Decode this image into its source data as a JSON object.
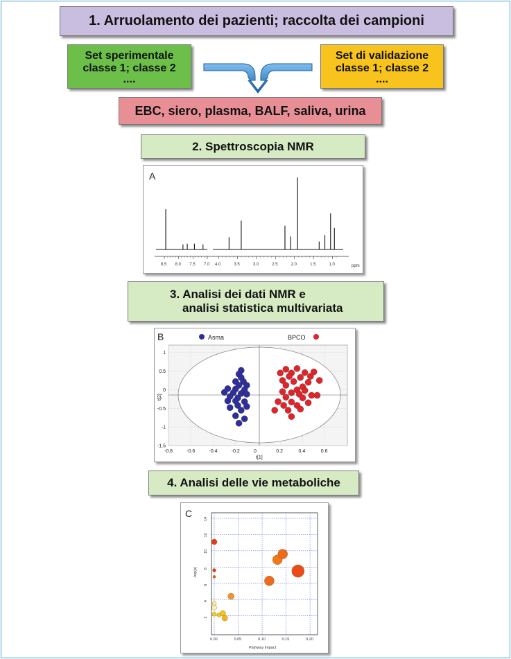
{
  "steps": {
    "step1": "1. Arruolamento dei pazienti; raccolta dei campioni",
    "set_exp": [
      "Set sperimentale",
      "classe 1; classe 2",
      "...."
    ],
    "set_val": [
      "Set di validazione",
      "classe 1; classe 2",
      "...."
    ],
    "samples": "EBC, siero, plasma, BALF, saliva, urina",
    "step2": "2. Spettroscopia NMR",
    "step3": [
      "3. Analisi dei dati NMR e",
      "analisi statistica multivariata"
    ],
    "step4": "4. Analisi delle vie metaboliche"
  },
  "colors": {
    "step1": "#c9bde0",
    "set_exp": "#6cc04a",
    "set_val": "#f7c31c",
    "samples": "#e88f95",
    "step_green": "#d6ebc3",
    "arrow": "#2f7fc1",
    "asma": "#2e2f9a",
    "bpco": "#e0252a"
  },
  "panels": {
    "A": {
      "label": "A",
      "x_ticks": [
        "8.5",
        "8.0",
        "7.5",
        "7.0",
        "4.0",
        "3.5",
        "3.0",
        "2.5",
        "2.0",
        "1.5",
        "1.0"
      ],
      "unit": "ppm"
    },
    "B": {
      "label": "B",
      "legend": [
        {
          "name": "Asma"
        },
        {
          "name": "BPCO"
        }
      ],
      "xlabel": "t[1]",
      "ylabel": "t[2]",
      "x_ticks": [
        "-0.8",
        "-0.6",
        "-0.4",
        "-0.2",
        "0",
        "0.2",
        "0.4",
        "0.6"
      ],
      "y_ticks": [
        "1",
        "0.5",
        "0",
        "-0.5",
        "-1",
        "-1.5"
      ]
    },
    "C": {
      "label": "C",
      "xlabel": "Pathway Impact",
      "ylabel": "-log(p)",
      "x_ticks": [
        "0.00",
        "0.05",
        "0.10",
        "0.15",
        "0.20"
      ],
      "y_ticks": [
        "14",
        "12",
        "10",
        "8",
        "6",
        "4",
        "2"
      ]
    }
  },
  "chart_data": [
    {
      "type": "line",
      "title": "A",
      "xlabel": "ppm",
      "x_reversed": true,
      "peaks": [
        {
          "ppm": 8.45,
          "h": 0.56
        },
        {
          "ppm": 7.85,
          "h": 0.07
        },
        {
          "ppm": 7.7,
          "h": 0.08
        },
        {
          "ppm": 7.45,
          "h": 0.08
        },
        {
          "ppm": 7.15,
          "h": 0.07
        },
        {
          "ppm": 3.72,
          "h": 0.17
        },
        {
          "ppm": 3.4,
          "h": 0.4
        },
        {
          "ppm": 2.25,
          "h": 0.33
        },
        {
          "ppm": 2.1,
          "h": 0.18
        },
        {
          "ppm": 1.92,
          "h": 1.0
        },
        {
          "ppm": 1.35,
          "h": 0.11
        },
        {
          "ppm": 1.2,
          "h": 0.2
        },
        {
          "ppm": 1.05,
          "h": 0.5
        },
        {
          "ppm": 0.95,
          "h": 0.3
        }
      ]
    },
    {
      "type": "scatter",
      "title": "B",
      "xlabel": "t[1]",
      "ylabel": "t[2]",
      "xlim": [
        -0.8,
        0.8
      ],
      "ylim": [
        -1.5,
        1.2
      ],
      "series": [
        {
          "name": "Asma",
          "points": [
            [
              -0.15,
              0.52
            ],
            [
              -0.17,
              0.42
            ],
            [
              -0.15,
              0.33
            ],
            [
              -0.2,
              0.22
            ],
            [
              -0.13,
              0.22
            ],
            [
              -0.17,
              0.12
            ],
            [
              -0.1,
              0.12
            ],
            [
              -0.27,
              0.03
            ],
            [
              -0.2,
              0.02
            ],
            [
              -0.12,
              0.0
            ],
            [
              -0.3,
              -0.07
            ],
            [
              -0.22,
              -0.08
            ],
            [
              -0.15,
              -0.1
            ],
            [
              -0.1,
              -0.12
            ],
            [
              -0.25,
              -0.18
            ],
            [
              -0.18,
              -0.22
            ],
            [
              -0.27,
              -0.3
            ],
            [
              -0.2,
              -0.3
            ],
            [
              -0.12,
              -0.32
            ],
            [
              -0.18,
              -0.42
            ],
            [
              -0.1,
              -0.45
            ],
            [
              -0.25,
              -0.48
            ],
            [
              -0.15,
              -0.55
            ],
            [
              -0.2,
              -0.7
            ],
            [
              -0.12,
              -0.78
            ],
            [
              -0.17,
              -0.9
            ]
          ]
        },
        {
          "name": "BPCO",
          "points": [
            [
              0.25,
              0.55
            ],
            [
              0.35,
              0.57
            ],
            [
              0.2,
              0.45
            ],
            [
              0.3,
              0.45
            ],
            [
              0.42,
              0.46
            ],
            [
              0.5,
              0.48
            ],
            [
              0.28,
              0.36
            ],
            [
              0.38,
              0.33
            ],
            [
              0.47,
              0.36
            ],
            [
              0.22,
              0.25
            ],
            [
              0.32,
              0.22
            ],
            [
              0.45,
              0.2
            ],
            [
              0.55,
              0.25
            ],
            [
              0.25,
              0.12
            ],
            [
              0.4,
              0.08
            ],
            [
              0.35,
              0.0
            ],
            [
              0.42,
              -0.02
            ],
            [
              0.22,
              -0.05
            ],
            [
              0.3,
              -0.08
            ],
            [
              0.37,
              -0.12
            ],
            [
              0.48,
              -0.15
            ],
            [
              0.53,
              -0.15
            ],
            [
              0.25,
              -0.2
            ],
            [
              0.4,
              -0.22
            ],
            [
              0.18,
              -0.32
            ],
            [
              0.3,
              -0.33
            ],
            [
              0.45,
              -0.35
            ],
            [
              0.23,
              -0.42
            ],
            [
              0.35,
              -0.42
            ],
            [
              0.15,
              -0.55
            ],
            [
              0.27,
              -0.55
            ],
            [
              0.38,
              -0.52
            ],
            [
              0.3,
              -0.72
            ]
          ]
        }
      ]
    },
    {
      "type": "scatter",
      "title": "C",
      "xlabel": "Pathway Impact",
      "ylabel": "-log(p)",
      "xlim": [
        0,
        0.21
      ],
      "ylim": [
        0,
        14
      ],
      "points": [
        {
          "x": 0.0,
          "y": 11.1,
          "size": 4,
          "color": "#e53a1f"
        },
        {
          "x": 0.0,
          "y": 7.6,
          "size": 2.5,
          "color": "#e53a1f"
        },
        {
          "x": 0.0,
          "y": 6.8,
          "size": 2,
          "color": "#e85a1f"
        },
        {
          "x": 0.0,
          "y": 3.5,
          "size": 3,
          "color": "#f7ec9a"
        },
        {
          "x": 0.0,
          "y": 3.0,
          "size": 3.5,
          "color": "#fbf3bd"
        },
        {
          "x": 0.0,
          "y": 2.2,
          "size": 3,
          "color": "#f4d02c"
        },
        {
          "x": 0.01,
          "y": 2.1,
          "size": 3,
          "color": "#f3c523"
        },
        {
          "x": 0.018,
          "y": 2.3,
          "size": 4,
          "color": "#f3c523"
        },
        {
          "x": 0.022,
          "y": 1.7,
          "size": 4,
          "color": "#f3b423"
        },
        {
          "x": 0.035,
          "y": 4.4,
          "size": 4.5,
          "color": "#f19431"
        },
        {
          "x": 0.115,
          "y": 6.3,
          "size": 7,
          "color": "#ee6a1f"
        },
        {
          "x": 0.132,
          "y": 8.9,
          "size": 7,
          "color": "#f07a1a"
        },
        {
          "x": 0.143,
          "y": 9.6,
          "size": 7,
          "color": "#ee6a1f"
        },
        {
          "x": 0.175,
          "y": 7.5,
          "size": 9,
          "color": "#ea4b18"
        }
      ]
    }
  ]
}
